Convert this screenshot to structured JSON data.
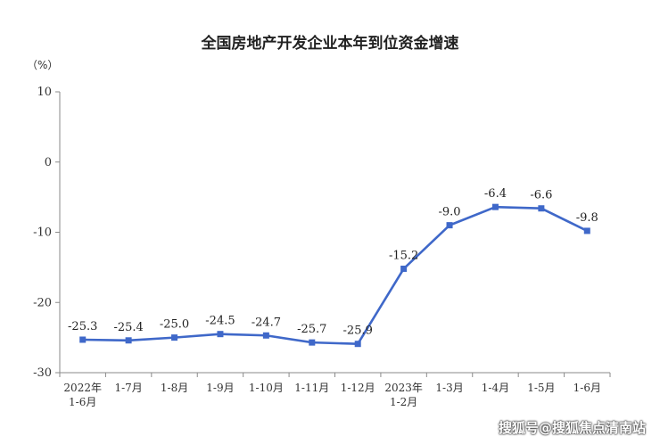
{
  "chart_data": {
    "type": "line",
    "title": "全国房地产开发企业本年到位资金增速",
    "y_unit": "（%）",
    "xlabel": "",
    "ylabel": "",
    "categories": [
      [
        "2022年",
        "1-6月"
      ],
      [
        "1-7月"
      ],
      [
        "1-8月"
      ],
      [
        "1-9月"
      ],
      [
        "1-10月"
      ],
      [
        "1-11月"
      ],
      [
        "1-12月"
      ],
      [
        "2023年",
        "1-2月"
      ],
      [
        "1-3月"
      ],
      [
        "1-4月"
      ],
      [
        "1-5月"
      ],
      [
        "1-6月"
      ]
    ],
    "values": [
      -25.3,
      -25.4,
      -25.0,
      -24.5,
      -24.7,
      -25.7,
      -25.9,
      -15.2,
      -9.0,
      -6.4,
      -6.6,
      -9.8
    ],
    "value_labels": [
      "-25.3",
      "-25.4",
      "-25.0",
      "-24.5",
      "-24.7",
      "-25.7",
      "-25.9",
      "-15.2",
      "-9.0",
      "-6.4",
      "-6.6",
      "-9.8"
    ],
    "ylim": [
      -30,
      10
    ],
    "yticks": [
      10,
      0,
      -10,
      -20,
      -30
    ],
    "grid": false,
    "legend": "none",
    "line_color": "#3f68c9",
    "axis_color": "#8a8a8a"
  },
  "watermark": "搜狐号@搜狐焦点清南站"
}
